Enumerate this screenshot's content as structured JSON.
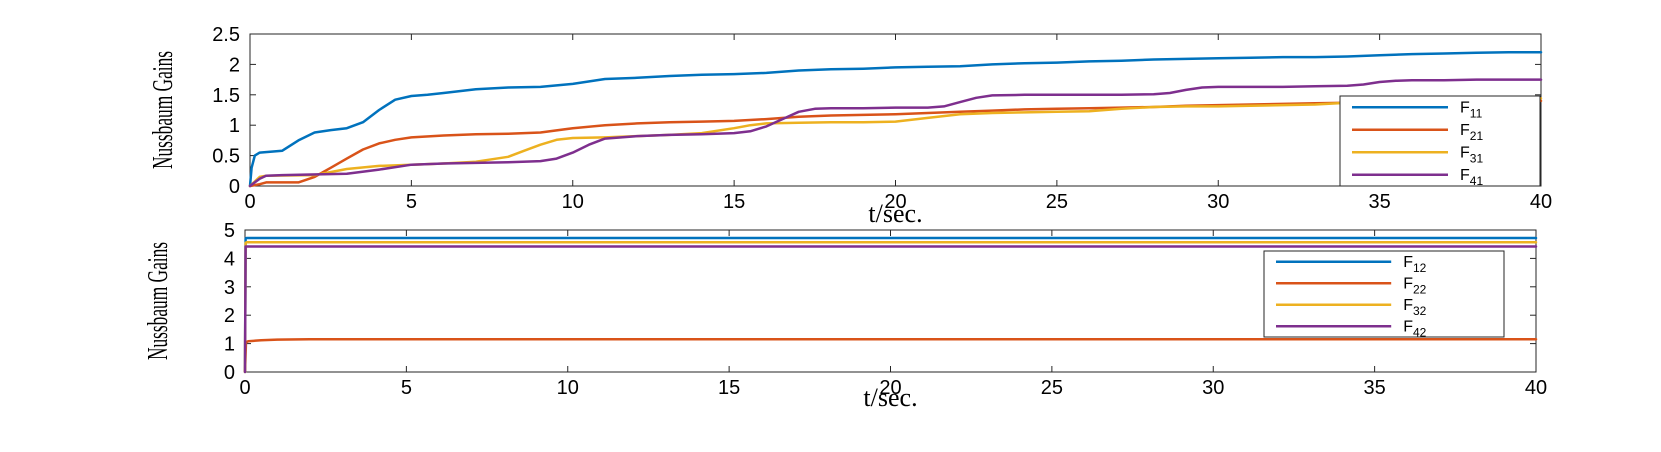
{
  "chart_data": [
    {
      "type": "line",
      "xlabel": "t/sec.",
      "ylabel": "Nussbaum Gains",
      "xlim": [
        0,
        40
      ],
      "ylim": [
        0,
        2.5
      ],
      "xticks": [
        "0",
        "5",
        "10",
        "15",
        "20",
        "25",
        "30",
        "35",
        "40"
      ],
      "yticks": [
        "0",
        "0.5",
        "1",
        "1.5",
        "2",
        "2.5"
      ],
      "legend_placement": "bottom-right",
      "series": [
        {
          "name": "F11",
          "name_main": "F",
          "name_sub": "11",
          "color": "#0072BD",
          "x": [
            0,
            0.05,
            0.15,
            0.3,
            1,
            1.5,
            2,
            2.5,
            3,
            3.5,
            4,
            4.5,
            5,
            5.5,
            6,
            7,
            8,
            9,
            10,
            11,
            12,
            13,
            14,
            15,
            16,
            17,
            18,
            19,
            20,
            21,
            22,
            23,
            24,
            25,
            26,
            27,
            28,
            29,
            30,
            31,
            32,
            33,
            34,
            35,
            36,
            37,
            38,
            39,
            40
          ],
          "y": [
            0,
            0.3,
            0.5,
            0.55,
            0.58,
            0.75,
            0.88,
            0.92,
            0.95,
            1.05,
            1.25,
            1.42,
            1.48,
            1.5,
            1.53,
            1.59,
            1.62,
            1.63,
            1.68,
            1.76,
            1.78,
            1.81,
            1.83,
            1.84,
            1.86,
            1.9,
            1.92,
            1.93,
            1.95,
            1.96,
            1.97,
            2.0,
            2.02,
            2.03,
            2.05,
            2.06,
            2.08,
            2.09,
            2.1,
            2.11,
            2.12,
            2.12,
            2.13,
            2.15,
            2.17,
            2.18,
            2.19,
            2.2,
            2.2
          ]
        },
        {
          "name": "F21",
          "name_main": "F",
          "name_sub": "21",
          "color": "#D95319",
          "x": [
            0,
            0.3,
            0.5,
            1.5,
            2,
            2.5,
            3,
            3.5,
            4,
            4.5,
            5,
            6,
            7,
            8,
            9,
            10,
            11,
            12,
            13,
            14,
            15,
            16,
            17,
            18,
            19,
            20,
            21,
            22,
            23,
            24,
            25,
            26,
            27,
            28,
            29,
            30,
            31,
            32,
            33,
            34,
            35,
            36,
            37,
            38,
            39,
            40
          ],
          "y": [
            0,
            0.03,
            0.06,
            0.06,
            0.15,
            0.3,
            0.45,
            0.6,
            0.7,
            0.76,
            0.8,
            0.83,
            0.85,
            0.86,
            0.88,
            0.95,
            1.0,
            1.03,
            1.05,
            1.06,
            1.07,
            1.1,
            1.14,
            1.16,
            1.17,
            1.18,
            1.2,
            1.22,
            1.24,
            1.26,
            1.27,
            1.28,
            1.29,
            1.3,
            1.32,
            1.33,
            1.34,
            1.35,
            1.36,
            1.37,
            1.38,
            1.38,
            1.39,
            1.39,
            1.4,
            1.4
          ]
        },
        {
          "name": "F31",
          "name_main": "F",
          "name_sub": "31",
          "color": "#EDB120",
          "x": [
            0,
            0.3,
            0.5,
            2,
            3,
            4,
            5,
            6,
            7,
            8,
            8.5,
            9,
            9.5,
            10,
            11,
            12,
            13,
            14,
            15,
            15.5,
            16,
            17,
            18,
            19,
            20,
            21,
            22,
            23,
            24,
            25,
            26,
            27,
            28,
            29,
            30,
            31,
            32,
            33,
            34,
            35,
            36,
            37,
            38,
            39,
            40
          ],
          "y": [
            0,
            0.15,
            0.17,
            0.18,
            0.28,
            0.33,
            0.35,
            0.37,
            0.4,
            0.48,
            0.58,
            0.68,
            0.76,
            0.79,
            0.8,
            0.82,
            0.84,
            0.87,
            0.95,
            1.0,
            1.03,
            1.04,
            1.05,
            1.05,
            1.06,
            1.12,
            1.18,
            1.2,
            1.21,
            1.22,
            1.23,
            1.27,
            1.3,
            1.31,
            1.31,
            1.32,
            1.33,
            1.34,
            1.37,
            1.39,
            1.4,
            1.42,
            1.43,
            1.43,
            1.44
          ]
        },
        {
          "name": "F41",
          "name_main": "F",
          "name_sub": "41",
          "color": "#7E2F8E",
          "x": [
            0,
            0.3,
            0.5,
            1,
            3,
            4,
            5,
            6,
            7,
            8,
            9,
            9.5,
            10,
            10.5,
            11,
            12,
            13,
            14,
            15,
            15.5,
            16,
            16.5,
            17,
            17.5,
            18,
            19,
            20,
            21,
            21.5,
            22,
            22.5,
            23,
            24,
            25,
            26,
            27,
            28,
            28.5,
            29,
            29.5,
            30,
            31,
            32,
            33,
            34,
            34.5,
            35,
            35.5,
            36,
            37,
            38,
            39,
            40
          ],
          "y": [
            0,
            0.12,
            0.17,
            0.18,
            0.2,
            0.27,
            0.35,
            0.37,
            0.38,
            0.39,
            0.41,
            0.45,
            0.55,
            0.68,
            0.78,
            0.82,
            0.84,
            0.85,
            0.87,
            0.9,
            0.98,
            1.1,
            1.22,
            1.27,
            1.28,
            1.28,
            1.29,
            1.29,
            1.31,
            1.38,
            1.45,
            1.49,
            1.5,
            1.5,
            1.5,
            1.5,
            1.51,
            1.53,
            1.58,
            1.62,
            1.63,
            1.63,
            1.63,
            1.64,
            1.65,
            1.67,
            1.71,
            1.73,
            1.74,
            1.74,
            1.75,
            1.75,
            1.75
          ]
        }
      ]
    },
    {
      "type": "line",
      "xlabel": "t/sec.",
      "ylabel": "Nussbaum Gains",
      "xlim": [
        0,
        40
      ],
      "ylim": [
        0,
        5
      ],
      "xticks": [
        "0",
        "5",
        "10",
        "15",
        "20",
        "25",
        "30",
        "35",
        "40"
      ],
      "yticks": [
        "0",
        "1",
        "2",
        "3",
        "4",
        "5"
      ],
      "legend_placement": "top-right",
      "series": [
        {
          "name": "F12",
          "name_main": "F",
          "name_sub": "12",
          "color": "#0072BD",
          "x": [
            0,
            0.02,
            0.05,
            40
          ],
          "y": [
            0,
            4.7,
            4.72,
            4.72
          ]
        },
        {
          "name": "F22",
          "name_main": "F",
          "name_sub": "22",
          "color": "#D95319",
          "x": [
            0,
            0.03,
            0.1,
            0.5,
            1,
            2,
            5,
            40
          ],
          "y": [
            0,
            1.05,
            1.08,
            1.12,
            1.14,
            1.15,
            1.15,
            1.15
          ]
        },
        {
          "name": "F32",
          "name_main": "F",
          "name_sub": "32",
          "color": "#EDB120",
          "x": [
            0,
            0.02,
            0.05,
            40
          ],
          "y": [
            0,
            4.55,
            4.57,
            4.57
          ]
        },
        {
          "name": "F42",
          "name_main": "F",
          "name_sub": "42",
          "color": "#7E2F8E",
          "x": [
            0,
            0.02,
            0.05,
            40
          ],
          "y": [
            0,
            4.42,
            4.42,
            4.42
          ]
        }
      ]
    }
  ]
}
